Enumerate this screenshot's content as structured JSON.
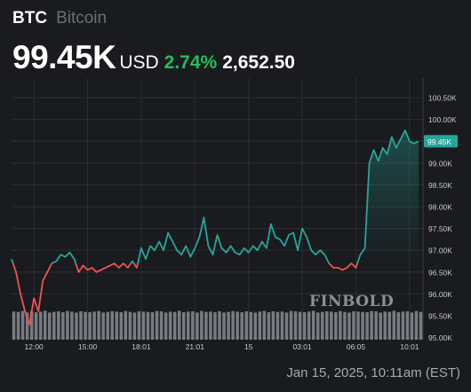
{
  "header": {
    "symbol": "BTC",
    "name": "Bitcoin",
    "price": "99.45K",
    "currency": "USD",
    "change_percent": "2.74%",
    "change_absolute": "2,652.50"
  },
  "watermark": "FINBOLD",
  "footer": {
    "date": "Jan 15, 2025, 10:11am (EST)"
  },
  "colors": {
    "background": "#1a1b1f",
    "up": "#26a69a",
    "down": "#ef5350",
    "change_positive": "#21c05a",
    "volume": "#8a8d94",
    "gridline": "#2c2e33"
  },
  "chart_data": {
    "type": "line",
    "ylim": [
      94.95,
      100.95
    ],
    "yticks": [
      "95.00K",
      "95.50K",
      "96.00K",
      "96.50K",
      "97.00K",
      "97.50K",
      "98.00K",
      "98.50K",
      "99.00K",
      "99.50K",
      "100.00K",
      "100.50K"
    ],
    "ytick_values": [
      95.0,
      95.5,
      96.0,
      96.5,
      97.0,
      97.5,
      98.0,
      98.5,
      99.0,
      99.5,
      100.0,
      100.5
    ],
    "xticks": [
      "12:00",
      "15:00",
      "18:01",
      "21:01",
      "15",
      "03:01",
      "06:05",
      "10:01"
    ],
    "xtick_positions": [
      2,
      8,
      14,
      20,
      26,
      32,
      38,
      44
    ],
    "xlim": [
      -0.5,
      45.5
    ],
    "baseline": 96.7,
    "last_price_label": "99.45K",
    "series": [
      {
        "x": [
          -0.5,
          0,
          0.5,
          1,
          1.5,
          2,
          2.5,
          3,
          3.5,
          4,
          4.5,
          5,
          5.5,
          6,
          6.5,
          7,
          7.5,
          8,
          8.5,
          9,
          9.5,
          10,
          10.5,
          11,
          11.5,
          12,
          12.5,
          13,
          13.5,
          14,
          14.5,
          15,
          15.5,
          16,
          16.5,
          17,
          17.5,
          18,
          18.5,
          19,
          19.5,
          20,
          20.5,
          21,
          21.5,
          22,
          22.5,
          23,
          23.5,
          24,
          24.5,
          25,
          25.5,
          26,
          26.5,
          27,
          27.5,
          28,
          28.5,
          29,
          29.5,
          30,
          30.5,
          31,
          31.5,
          32,
          32.5,
          33,
          33.5,
          34,
          34.5,
          35,
          35.5,
          36,
          36.5,
          37,
          37.5,
          38,
          38.5,
          39,
          39.5,
          40,
          40.5,
          41,
          41.5,
          42,
          42.5,
          43,
          43.5,
          44,
          44.5,
          45
        ],
        "y": [
          96.8,
          96.5,
          96.0,
          95.6,
          95.3,
          95.9,
          95.6,
          96.3,
          96.5,
          96.7,
          96.75,
          96.9,
          96.85,
          96.95,
          96.8,
          96.5,
          96.65,
          96.55,
          96.6,
          96.5,
          96.55,
          96.6,
          96.65,
          96.7,
          96.6,
          96.7,
          96.6,
          96.75,
          96.6,
          97.05,
          96.8,
          97.1,
          97.0,
          97.2,
          97.0,
          97.4,
          97.2,
          97.0,
          96.9,
          97.1,
          96.85,
          97.05,
          97.3,
          97.75,
          97.1,
          96.9,
          97.35,
          97.05,
          96.95,
          97.1,
          96.95,
          96.9,
          97.05,
          96.95,
          97.1,
          97.0,
          97.2,
          97.05,
          97.6,
          97.3,
          97.25,
          97.1,
          97.35,
          97.4,
          97.0,
          97.5,
          97.3,
          97.0,
          96.9,
          97.0,
          96.9,
          96.7,
          96.6,
          96.6,
          96.55,
          96.6,
          96.7,
          96.6,
          96.9,
          97.05,
          99.0,
          99.3,
          99.05,
          99.35,
          99.2,
          99.6,
          99.35,
          99.55,
          99.75,
          99.5,
          99.45,
          99.5
        ]
      }
    ],
    "volume_ylim": [
      0,
      1
    ],
    "volume": [
      0.93,
      0.92,
      0.95,
      0.9,
      0.94,
      0.91,
      0.93,
      0.96,
      0.9,
      0.92,
      0.94,
      0.91,
      0.95,
      0.93,
      0.9,
      0.94,
      0.92,
      0.91,
      0.93,
      0.95,
      0.9,
      0.92,
      0.94,
      0.93,
      0.91,
      0.95,
      0.92,
      0.9,
      0.94,
      0.93,
      0.92,
      0.91,
      0.95,
      0.94,
      0.9,
      0.93,
      0.92,
      0.96,
      0.91,
      0.93,
      0.94,
      0.9,
      0.95,
      0.92,
      0.93,
      0.91,
      0.94,
      0.9,
      0.92,
      0.95,
      0.93,
      0.91,
      0.94,
      0.92,
      0.9,
      0.93,
      0.95,
      0.91,
      0.94,
      0.92,
      0.93,
      0.9,
      0.95,
      0.94,
      0.92,
      0.91,
      0.93,
      0.96,
      0.9,
      0.92,
      0.94,
      0.93,
      0.91,
      0.95,
      0.92,
      0.9,
      0.94,
      0.93,
      0.92,
      0.91,
      0.95,
      0.94,
      0.9,
      0.93,
      0.92,
      0.96,
      0.91,
      0.93,
      0.94,
      0.9,
      0.95,
      0.92
    ]
  }
}
